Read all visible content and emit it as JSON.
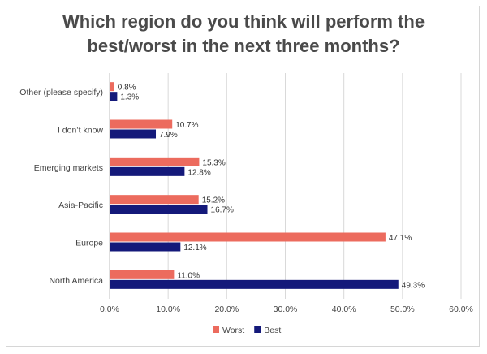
{
  "title_line1": "Which region do you think will perform the",
  "title_line2": "best/worst in the next three months?",
  "chart_data": {
    "type": "bar",
    "orientation": "horizontal",
    "title": "Which region do you think will perform the best/worst in the next three months?",
    "categories": [
      "Other (please specify)",
      "I don’t know",
      "Emerging markets",
      "Asia-Pacific",
      "Europe",
      "North America"
    ],
    "series": [
      {
        "name": "Worst",
        "color": "#ec6b5e",
        "values": [
          0.8,
          10.7,
          15.3,
          15.2,
          47.1,
          11.0
        ],
        "labels": [
          "0.8%",
          "10.7%",
          "15.3%",
          "15.2%",
          "47.1%",
          "11.0%"
        ]
      },
      {
        "name": "Best",
        "color": "#14197a",
        "values": [
          1.3,
          7.9,
          12.8,
          16.7,
          12.1,
          49.3
        ],
        "labels": [
          "1.3%",
          "7.9%",
          "12.8%",
          "16.7%",
          "12.1%",
          "49.3%"
        ]
      }
    ],
    "xlim": [
      0,
      60
    ],
    "ticks": [
      "0.0%",
      "10.0%",
      "20.0%",
      "30.0%",
      "40.0%",
      "50.0%",
      "60.0%"
    ],
    "grid": true,
    "legend": "bottom"
  }
}
